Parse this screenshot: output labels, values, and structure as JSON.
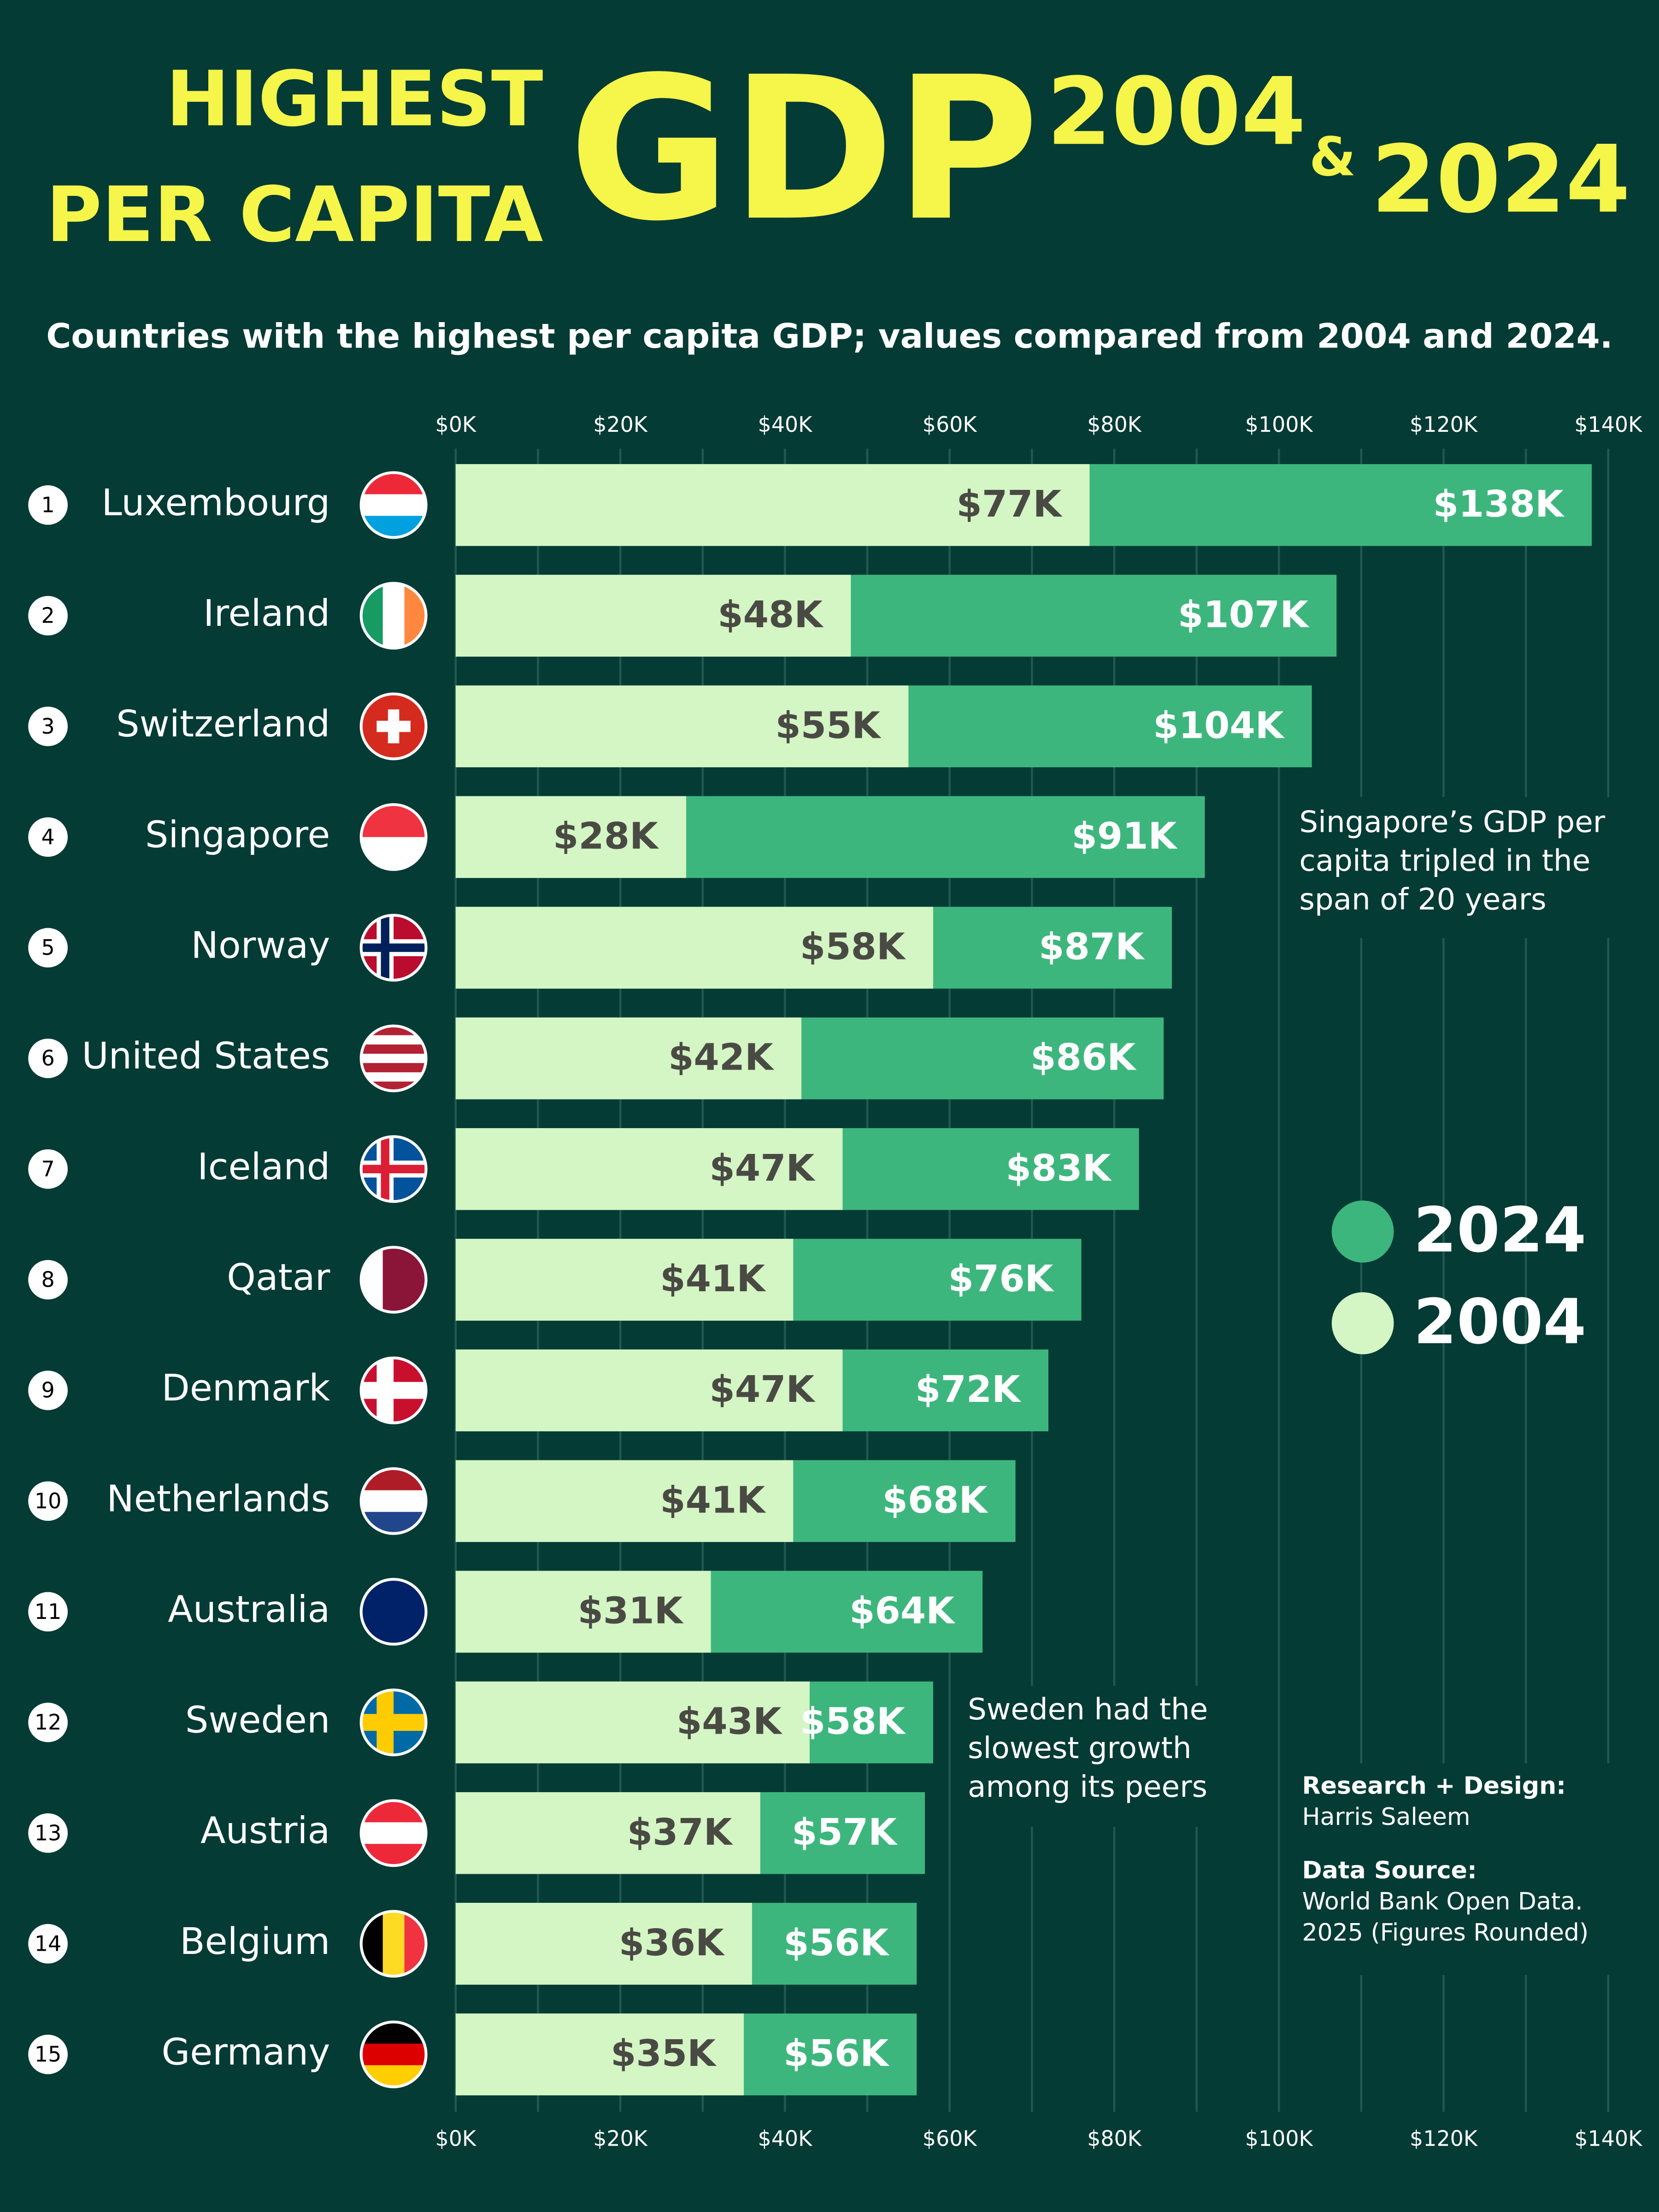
{
  "chart_data": {
    "type": "bar",
    "orientation": "horizontal",
    "overlay": true,
    "title_small": [
      "HIGHEST",
      "PER CAPITA"
    ],
    "title_big": "GDP",
    "title_year_1": "2004",
    "title_amp": "&",
    "title_year_2": "2024",
    "subtitle": "Countries with the highest per capita GDP; values compared from 2004 and 2024.",
    "ranks": [
      1,
      2,
      3,
      4,
      5,
      6,
      7,
      8,
      9,
      10,
      11,
      12,
      13,
      14,
      15
    ],
    "categories": [
      "Luxembourg",
      "Ireland",
      "Switzerland",
      "Singapore",
      "Norway",
      "United States",
      "Iceland",
      "Qatar",
      "Denmark",
      "Netherlands",
      "Australia",
      "Sweden",
      "Austria",
      "Belgium",
      "Germany"
    ],
    "series": [
      {
        "name": "2024",
        "color": "#3db67d",
        "label_color": "#ffffff",
        "values": [
          138,
          107,
          104,
          91,
          87,
          86,
          83,
          76,
          72,
          68,
          64,
          58,
          57,
          56,
          56
        ],
        "value_labels": [
          "$138K",
          "$107K",
          "$104K",
          "$91K",
          "$87K",
          "$86K",
          "$83K",
          "$76K",
          "$72K",
          "$68K",
          "$64K",
          "$58K",
          "$57K",
          "$56K",
          "$56K"
        ]
      },
      {
        "name": "2004",
        "color": "#d4f5c4",
        "label_color": "#4a4a44",
        "values": [
          77,
          48,
          55,
          28,
          58,
          42,
          47,
          41,
          47,
          41,
          31,
          43,
          37,
          36,
          35
        ],
        "value_labels": [
          "$77K",
          "$48K",
          "$55K",
          "$28K",
          "$58K",
          "$42K",
          "$47K",
          "$41K",
          "$47K",
          "$41K",
          "$31K",
          "$43K",
          "$37K",
          "$36K",
          "$35K"
        ]
      }
    ],
    "xlim": [
      0,
      140
    ],
    "xticks": [
      {
        "value": 0,
        "label": "$0K"
      },
      {
        "value": 20,
        "label": "$20K"
      },
      {
        "value": 40,
        "label": "$40K"
      },
      {
        "value": 60,
        "label": "$60K"
      },
      {
        "value": 80,
        "label": "$80K"
      },
      {
        "value": 100,
        "label": "$100K"
      },
      {
        "value": 120,
        "label": "$120K"
      },
      {
        "value": 140,
        "label": "$140K"
      }
    ],
    "minor_xticks": [
      10,
      30,
      50,
      70,
      90,
      110,
      130
    ],
    "grid": true,
    "annotations": [
      {
        "lines": [
          "Singapore’s GDP per",
          "capita tripled in the",
          "span of 20 years"
        ]
      },
      {
        "lines": [
          "Sweden had the",
          "slowest growth",
          "among its peers"
        ]
      }
    ],
    "credits": [
      {
        "heading": "Research + Design:",
        "lines": [
          "Harris Saleem"
        ]
      },
      {
        "heading": "Data Source:",
        "lines": [
          "World Bank Open Data.",
          "2025 (Figures Rounded)"
        ]
      }
    ]
  }
}
